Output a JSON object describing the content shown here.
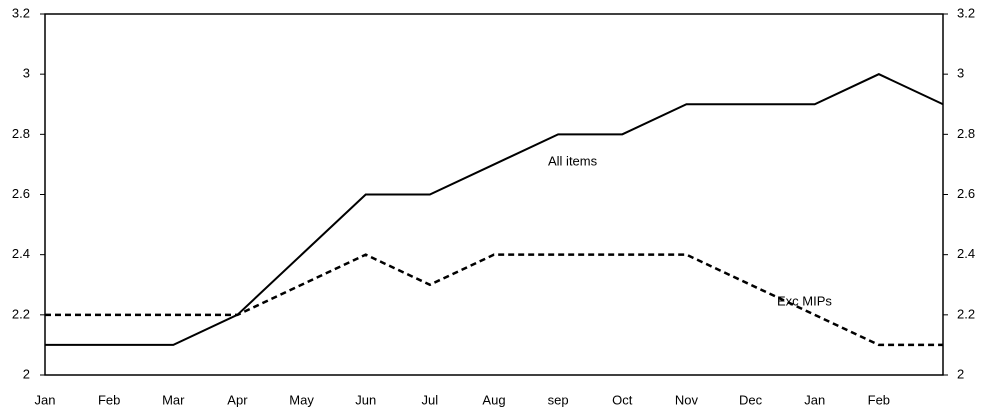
{
  "chart_data": {
    "type": "line",
    "categories": [
      "Jan",
      "Feb",
      "Mar",
      "Apr",
      "May",
      "Jun",
      "Jul",
      "Aug",
      "sep",
      "Oct",
      "Nov",
      "Dec",
      "Jan",
      "Feb",
      null
    ],
    "series": [
      {
        "name": "All items",
        "color": "#000000",
        "dashed": false,
        "values": [
          2.1,
          2.1,
          2.1,
          2.2,
          2.4,
          2.6,
          2.6,
          2.7,
          2.8,
          2.8,
          2.9,
          2.9,
          2.9,
          3.0,
          2.9
        ]
      },
      {
        "name": "Exc MIPs",
        "color": "#000000",
        "dashed": true,
        "values": [
          2.2,
          2.2,
          2.2,
          2.2,
          2.3,
          2.4,
          2.3,
          2.4,
          2.4,
          2.4,
          2.4,
          2.3,
          2.2,
          2.1,
          2.1
        ]
      }
    ],
    "ylim": [
      2,
      3.2
    ],
    "yticks": [
      2,
      2.2,
      2.4,
      2.6,
      2.8,
      3,
      3.2
    ],
    "y2lim": [
      2,
      3.2
    ],
    "y2ticks": [
      2,
      2.2,
      2.4,
      2.6,
      2.8,
      3,
      3.2
    ],
    "grid": false
  }
}
